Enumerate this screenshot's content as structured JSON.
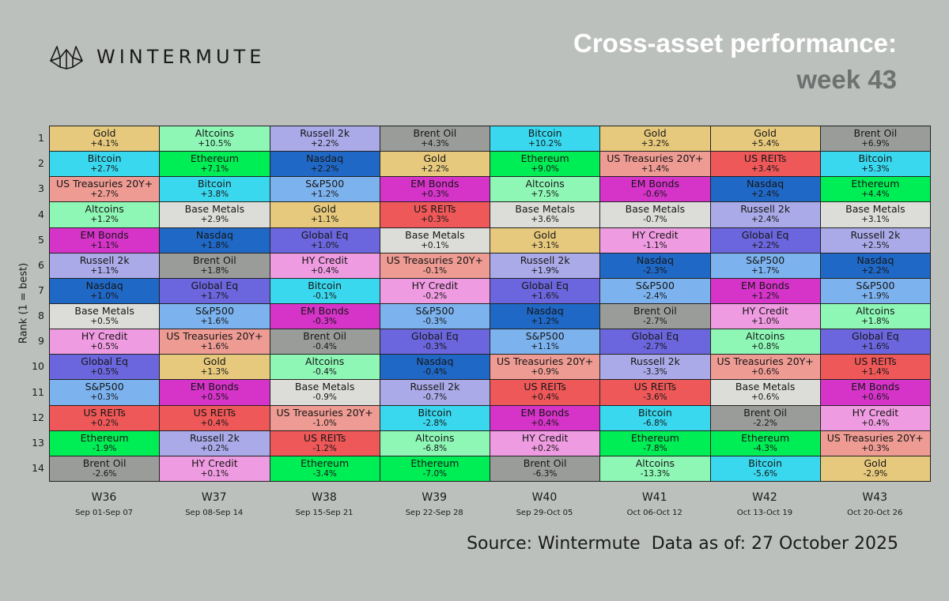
{
  "brand": "WINTERMUTE",
  "title": "Cross-asset performance:",
  "subtitle": "week 43",
  "source": "Source: Wintermute  Data as of: 27 October 2025",
  "chart_data": {
    "type": "table",
    "ylabel": "Rank (1 = best)",
    "ranks": [
      "1",
      "2",
      "3",
      "4",
      "5",
      "6",
      "7",
      "8",
      "9",
      "10",
      "11",
      "12",
      "13",
      "14"
    ],
    "asset_colors": {
      "Gold": "#e6c97c",
      "Altcoins": "#8ef7b6",
      "Russell 2k": "#aaaae8",
      "Brent Oil": "#999c99",
      "Bitcoin": "#3ad8ee",
      "Ethereum": "#00ee55",
      "Nasdaq": "#2068c6",
      "US Treasuries 20Y+": "#ee9b93",
      "S&P500": "#7cb2ee",
      "EM Bonds": "#d633c9",
      "Base Metals": "#dcdcd8",
      "Global Eq": "#6b66dd",
      "HY Credit": "#ef9be1",
      "US REITs": "#ee5858"
    },
    "weeks": [
      {
        "label": "W36",
        "dates": "Sep 01-Sep 07",
        "cells": [
          {
            "asset": "Gold",
            "value": "+4.1%"
          },
          {
            "asset": "Bitcoin",
            "value": "+2.7%"
          },
          {
            "asset": "US Treasuries 20Y+",
            "value": "+2.7%"
          },
          {
            "asset": "Altcoins",
            "value": "+1.2%"
          },
          {
            "asset": "EM Bonds",
            "value": "+1.1%"
          },
          {
            "asset": "Russell 2k",
            "value": "+1.1%"
          },
          {
            "asset": "Nasdaq",
            "value": "+1.0%"
          },
          {
            "asset": "Base Metals",
            "value": "+0.5%"
          },
          {
            "asset": "HY Credit",
            "value": "+0.5%"
          },
          {
            "asset": "Global Eq",
            "value": "+0.5%"
          },
          {
            "asset": "S&P500",
            "value": "+0.3%"
          },
          {
            "asset": "US REITs",
            "value": "+0.2%"
          },
          {
            "asset": "Ethereum",
            "value": "-1.9%"
          },
          {
            "asset": "Brent Oil",
            "value": "-2.6%"
          }
        ]
      },
      {
        "label": "W37",
        "dates": "Sep 08-Sep 14",
        "cells": [
          {
            "asset": "Altcoins",
            "value": "+10.5%"
          },
          {
            "asset": "Ethereum",
            "value": "+7.1%"
          },
          {
            "asset": "Bitcoin",
            "value": "+3.8%"
          },
          {
            "asset": "Base Metals",
            "value": "+2.9%"
          },
          {
            "asset": "Nasdaq",
            "value": "+1.8%"
          },
          {
            "asset": "Brent Oil",
            "value": "+1.8%"
          },
          {
            "asset": "Global Eq",
            "value": "+1.7%"
          },
          {
            "asset": "S&P500",
            "value": "+1.6%"
          },
          {
            "asset": "US Treasuries 20Y+",
            "value": "+1.6%"
          },
          {
            "asset": "Gold",
            "value": "+1.3%"
          },
          {
            "asset": "EM Bonds",
            "value": "+0.5%"
          },
          {
            "asset": "US REITs",
            "value": "+0.4%"
          },
          {
            "asset": "Russell 2k",
            "value": "+0.2%"
          },
          {
            "asset": "HY Credit",
            "value": "+0.1%"
          }
        ]
      },
      {
        "label": "W38",
        "dates": "Sep 15-Sep 21",
        "cells": [
          {
            "asset": "Russell 2k",
            "value": "+2.2%"
          },
          {
            "asset": "Nasdaq",
            "value": "+2.2%"
          },
          {
            "asset": "S&P500",
            "value": "+1.2%"
          },
          {
            "asset": "Gold",
            "value": "+1.1%"
          },
          {
            "asset": "Global Eq",
            "value": "+1.0%"
          },
          {
            "asset": "HY Credit",
            "value": "+0.4%"
          },
          {
            "asset": "Bitcoin",
            "value": "-0.1%"
          },
          {
            "asset": "EM Bonds",
            "value": "-0.3%"
          },
          {
            "asset": "Brent Oil",
            "value": "-0.4%"
          },
          {
            "asset": "Altcoins",
            "value": "-0.4%"
          },
          {
            "asset": "Base Metals",
            "value": "-0.9%"
          },
          {
            "asset": "US Treasuries 20Y+",
            "value": "-1.0%"
          },
          {
            "asset": "US REITs",
            "value": "-1.2%"
          },
          {
            "asset": "Ethereum",
            "value": "-3.4%"
          }
        ]
      },
      {
        "label": "W39",
        "dates": "Sep 22-Sep 28",
        "cells": [
          {
            "asset": "Brent Oil",
            "value": "+4.3%"
          },
          {
            "asset": "Gold",
            "value": "+2.2%"
          },
          {
            "asset": "EM Bonds",
            "value": "+0.3%"
          },
          {
            "asset": "US REITs",
            "value": "+0.3%"
          },
          {
            "asset": "Base Metals",
            "value": "+0.1%"
          },
          {
            "asset": "US Treasuries 20Y+",
            "value": "-0.1%"
          },
          {
            "asset": "HY Credit",
            "value": "-0.2%"
          },
          {
            "asset": "S&P500",
            "value": "-0.3%"
          },
          {
            "asset": "Global Eq",
            "value": "-0.3%"
          },
          {
            "asset": "Nasdaq",
            "value": "-0.4%"
          },
          {
            "asset": "Russell 2k",
            "value": "-0.7%"
          },
          {
            "asset": "Bitcoin",
            "value": "-2.8%"
          },
          {
            "asset": "Altcoins",
            "value": "-6.8%"
          },
          {
            "asset": "Ethereum",
            "value": "-7.0%"
          }
        ]
      },
      {
        "label": "W40",
        "dates": "Sep 29-Oct 05",
        "cells": [
          {
            "asset": "Bitcoin",
            "value": "+10.2%"
          },
          {
            "asset": "Ethereum",
            "value": "+9.0%"
          },
          {
            "asset": "Altcoins",
            "value": "+7.5%"
          },
          {
            "asset": "Base Metals",
            "value": "+3.6%"
          },
          {
            "asset": "Gold",
            "value": "+3.1%"
          },
          {
            "asset": "Russell 2k",
            "value": "+1.9%"
          },
          {
            "asset": "Global Eq",
            "value": "+1.6%"
          },
          {
            "asset": "Nasdaq",
            "value": "+1.2%"
          },
          {
            "asset": "S&P500",
            "value": "+1.1%"
          },
          {
            "asset": "US Treasuries 20Y+",
            "value": "+0.9%"
          },
          {
            "asset": "US REITs",
            "value": "+0.4%"
          },
          {
            "asset": "EM Bonds",
            "value": "+0.4%"
          },
          {
            "asset": "HY Credit",
            "value": "+0.2%"
          },
          {
            "asset": "Brent Oil",
            "value": "-6.3%"
          }
        ]
      },
      {
        "label": "W41",
        "dates": "Oct 06-Oct 12",
        "cells": [
          {
            "asset": "Gold",
            "value": "+3.2%"
          },
          {
            "asset": "US Treasuries 20Y+",
            "value": "+1.4%"
          },
          {
            "asset": "EM Bonds",
            "value": "-0.6%"
          },
          {
            "asset": "Base Metals",
            "value": "-0.7%"
          },
          {
            "asset": "HY Credit",
            "value": "-1.1%"
          },
          {
            "asset": "Nasdaq",
            "value": "-2.3%"
          },
          {
            "asset": "S&P500",
            "value": "-2.4%"
          },
          {
            "asset": "Brent Oil",
            "value": "-2.7%"
          },
          {
            "asset": "Global Eq",
            "value": "-2.7%"
          },
          {
            "asset": "Russell 2k",
            "value": "-3.3%"
          },
          {
            "asset": "US REITs",
            "value": "-3.6%"
          },
          {
            "asset": "Bitcoin",
            "value": "-6.8%"
          },
          {
            "asset": "Ethereum",
            "value": "-7.8%"
          },
          {
            "asset": "Altcoins",
            "value": "-13.3%"
          }
        ]
      },
      {
        "label": "W42",
        "dates": "Oct 13-Oct 19",
        "cells": [
          {
            "asset": "Gold",
            "value": "+5.4%"
          },
          {
            "asset": "US REITs",
            "value": "+3.4%"
          },
          {
            "asset": "Nasdaq",
            "value": "+2.4%"
          },
          {
            "asset": "Russell 2k",
            "value": "+2.4%"
          },
          {
            "asset": "Global Eq",
            "value": "+2.2%"
          },
          {
            "asset": "S&P500",
            "value": "+1.7%"
          },
          {
            "asset": "EM Bonds",
            "value": "+1.2%"
          },
          {
            "asset": "HY Credit",
            "value": "+1.0%"
          },
          {
            "asset": "Altcoins",
            "value": "+0.8%"
          },
          {
            "asset": "US Treasuries 20Y+",
            "value": "+0.6%"
          },
          {
            "asset": "Base Metals",
            "value": "+0.6%"
          },
          {
            "asset": "Brent Oil",
            "value": "-2.2%"
          },
          {
            "asset": "Ethereum",
            "value": "-4.3%"
          },
          {
            "asset": "Bitcoin",
            "value": "-5.6%"
          }
        ]
      },
      {
        "label": "W43",
        "dates": "Oct 20-Oct 26",
        "cells": [
          {
            "asset": "Brent Oil",
            "value": "+6.9%"
          },
          {
            "asset": "Bitcoin",
            "value": "+5.3%"
          },
          {
            "asset": "Ethereum",
            "value": "+4.4%"
          },
          {
            "asset": "Base Metals",
            "value": "+3.1%"
          },
          {
            "asset": "Russell 2k",
            "value": "+2.5%"
          },
          {
            "asset": "Nasdaq",
            "value": "+2.2%"
          },
          {
            "asset": "S&P500",
            "value": "+1.9%"
          },
          {
            "asset": "Altcoins",
            "value": "+1.8%"
          },
          {
            "asset": "Global Eq",
            "value": "+1.6%"
          },
          {
            "asset": "US REITs",
            "value": "+1.4%"
          },
          {
            "asset": "EM Bonds",
            "value": "+0.6%"
          },
          {
            "asset": "HY Credit",
            "value": "+0.4%"
          },
          {
            "asset": "US Treasuries 20Y+",
            "value": "+0.3%"
          },
          {
            "asset": "Gold",
            "value": "-2.9%"
          }
        ]
      }
    ]
  }
}
